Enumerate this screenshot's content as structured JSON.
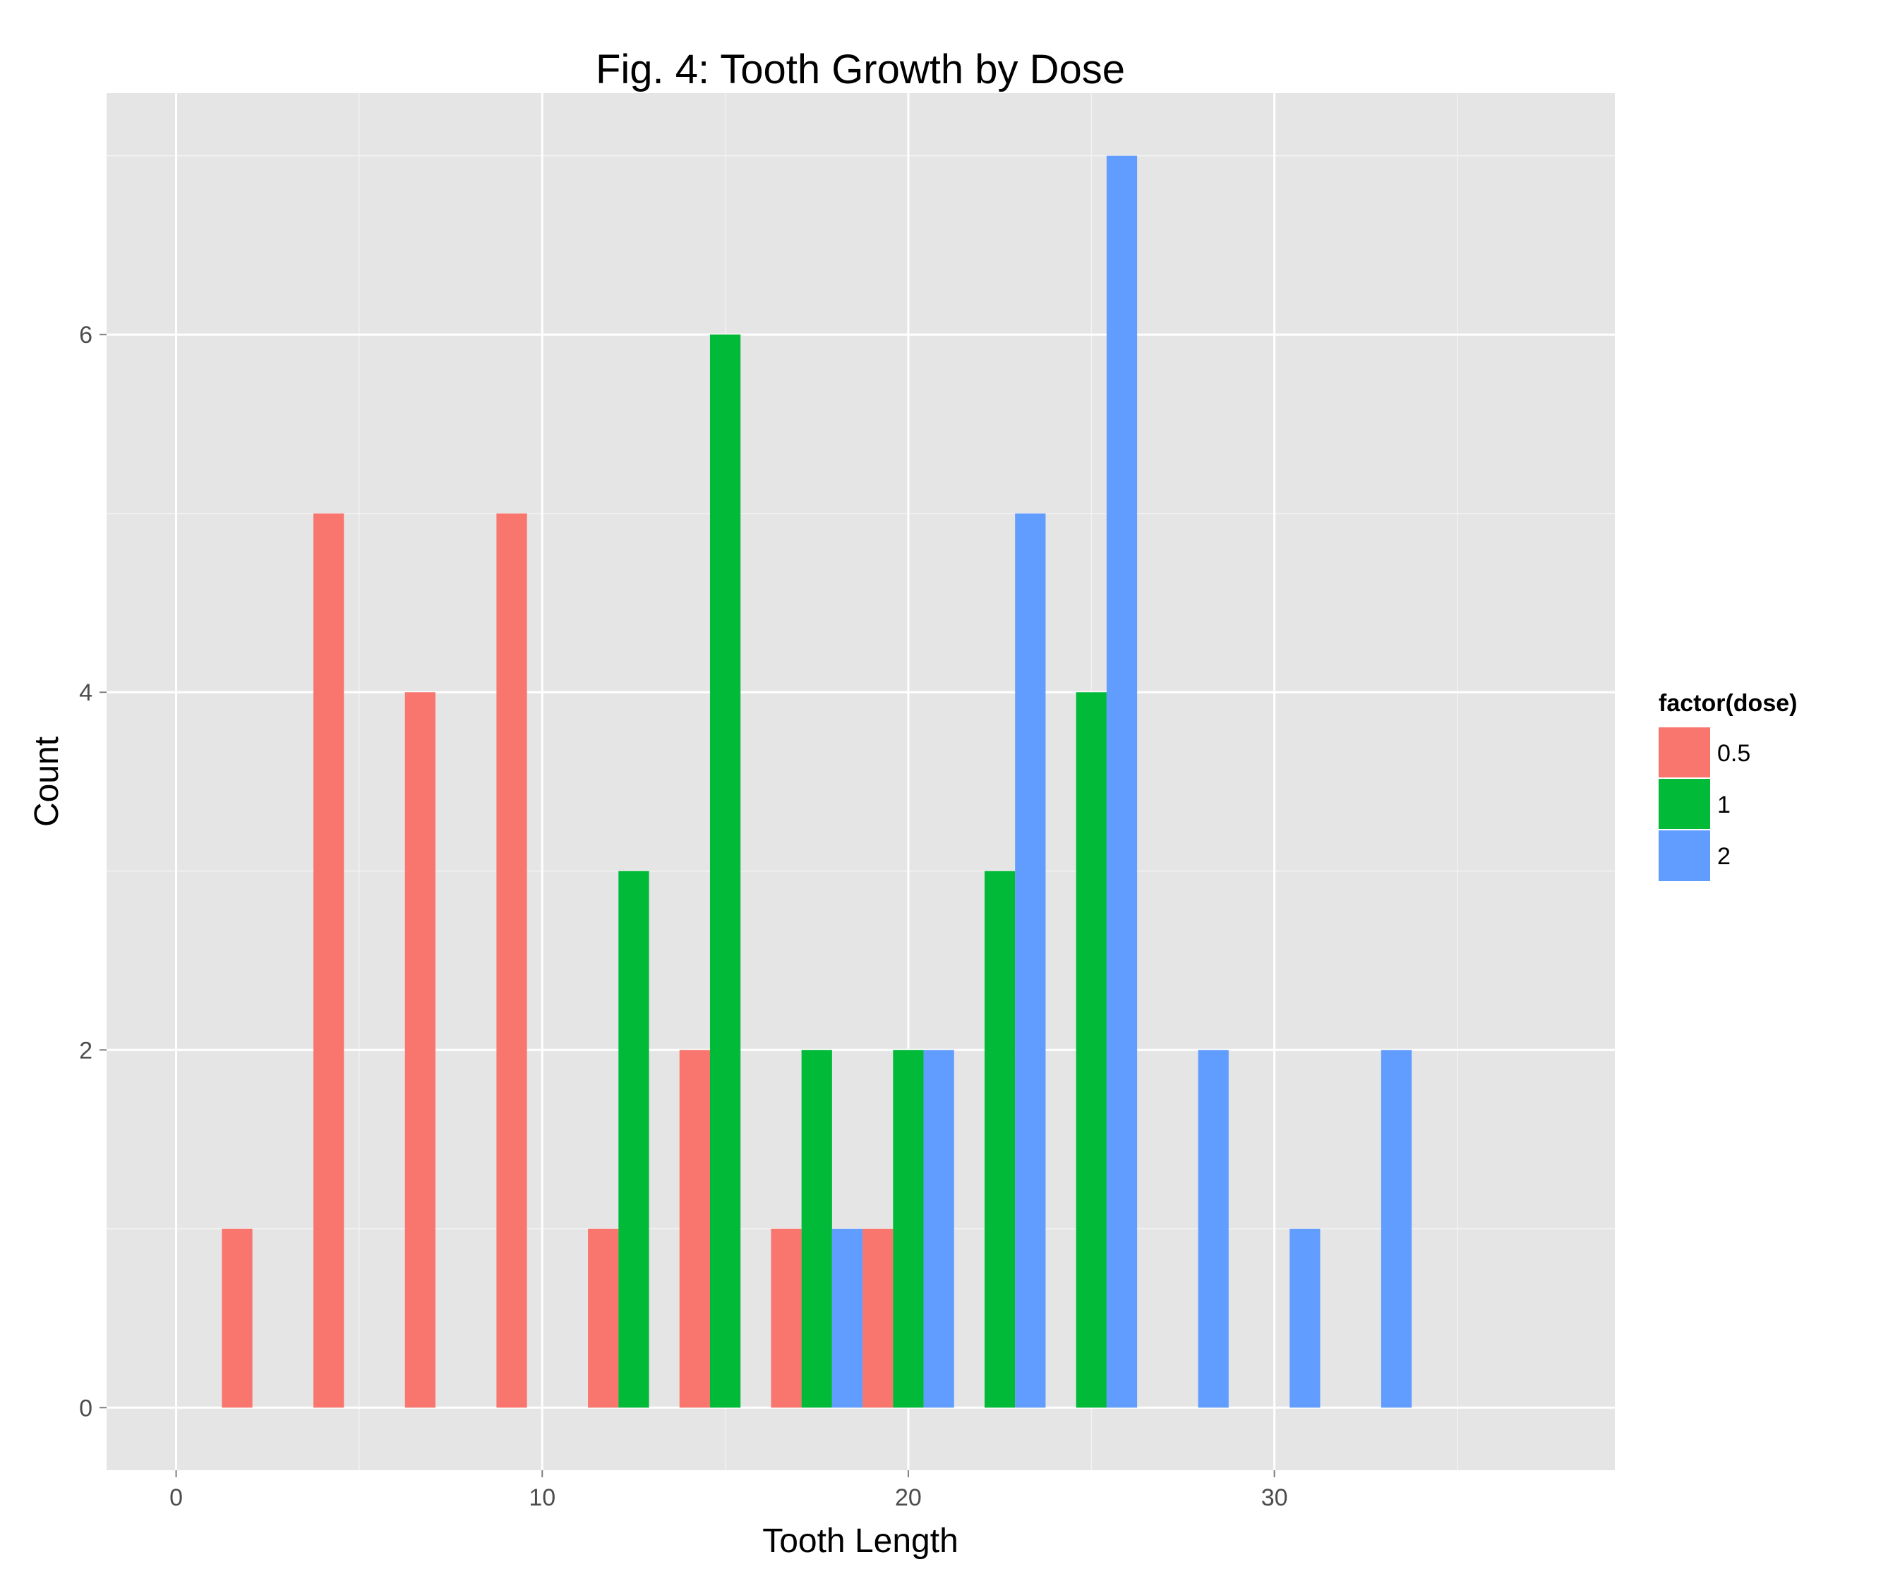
{
  "chart_data": {
    "type": "bar",
    "title": "Fig. 4: Tooth Growth by Dose",
    "xlabel": "Tooth Length",
    "ylabel": "Count",
    "xlim": [
      -1.9,
      39.3
    ],
    "ylim": [
      -0.35,
      7.35
    ],
    "xticks": [
      0,
      10,
      20,
      30
    ],
    "yticks": [
      0,
      2,
      4,
      6
    ],
    "grid": true,
    "bin_width": 2.5,
    "legend": {
      "title": "factor(dose)",
      "position": "right",
      "entries": [
        "0.5",
        "1",
        "2"
      ]
    },
    "x": [
      2.5,
      5,
      7.5,
      10,
      12.5,
      15,
      17.5,
      20,
      22.5,
      25,
      27.5,
      30,
      32.5,
      35
    ],
    "series": [
      {
        "name": "0.5",
        "color": "#F8766D",
        "values": [
          1,
          5,
          4,
          5,
          1,
          2,
          1,
          1,
          0,
          0,
          0,
          0,
          0,
          0
        ]
      },
      {
        "name": "1",
        "color": "#00BA38",
        "values": [
          0,
          0,
          0,
          0,
          3,
          6,
          2,
          2,
          3,
          4,
          0,
          0,
          0,
          0
        ]
      },
      {
        "name": "2",
        "color": "#619CFF",
        "values": [
          0,
          0,
          0,
          0,
          0,
          0,
          1,
          2,
          5,
          7,
          2,
          1,
          2,
          0
        ]
      }
    ]
  }
}
